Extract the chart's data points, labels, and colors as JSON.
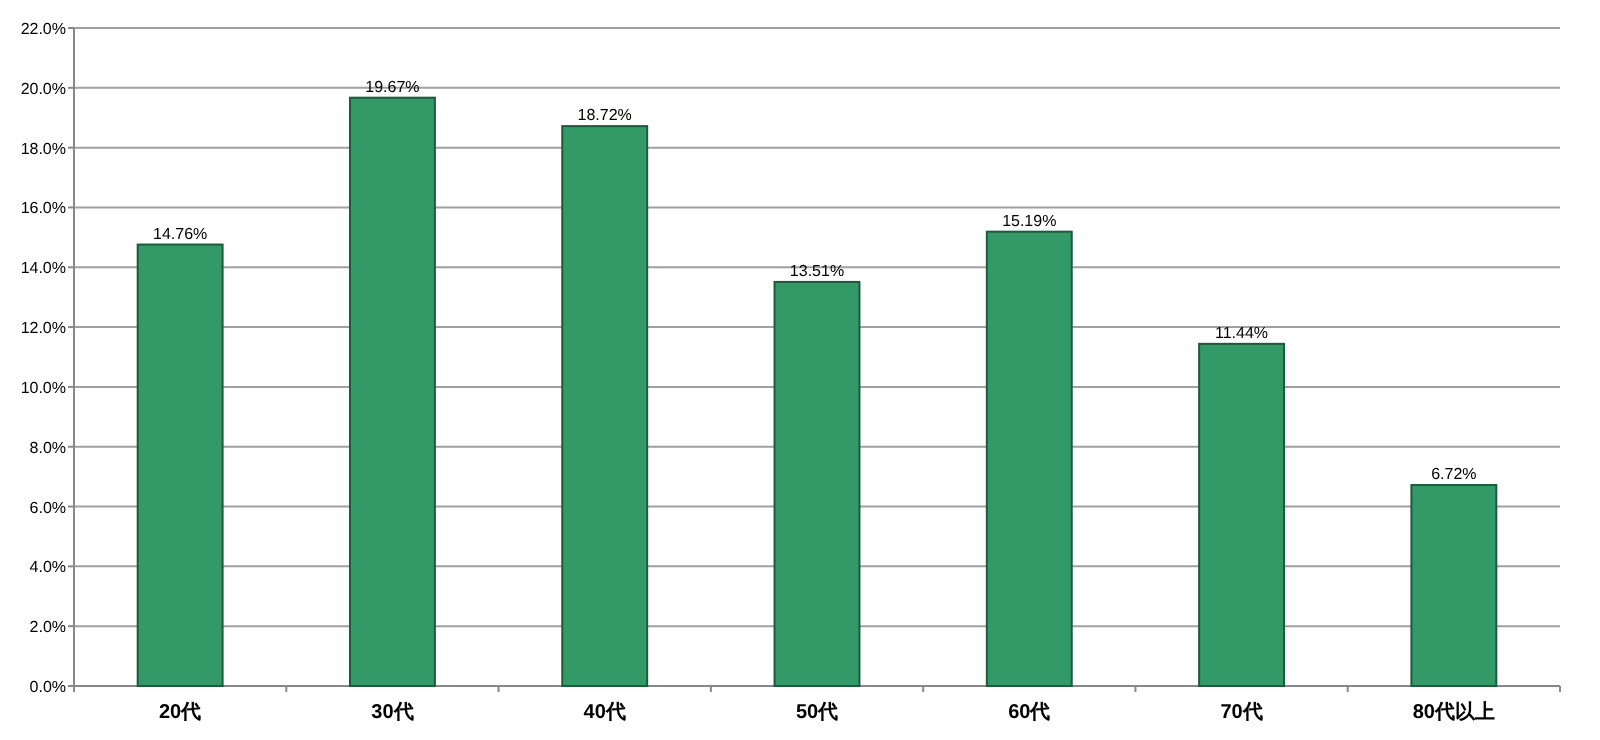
{
  "chart_data": {
    "type": "bar",
    "categories": [
      "20代",
      "30代",
      "40代",
      "50代",
      "60代",
      "70代",
      "80代以上"
    ],
    "values": [
      14.76,
      19.67,
      18.72,
      13.51,
      15.19,
      11.44,
      6.72
    ],
    "value_labels": [
      "14.76%",
      "19.67%",
      "18.72%",
      "13.51%",
      "15.19%",
      "11.44%",
      "6.72%"
    ],
    "color": "#339966",
    "ylim": [
      0,
      22
    ],
    "yticks": [
      {
        "value": 0,
        "label": "0.0%"
      },
      {
        "value": 2,
        "label": "2.0%"
      },
      {
        "value": 4,
        "label": "4.0%"
      },
      {
        "value": 6,
        "label": "6.0%"
      },
      {
        "value": 8,
        "label": "8.0%"
      },
      {
        "value": 10,
        "label": "10.0%"
      },
      {
        "value": 12,
        "label": "12.0%"
      },
      {
        "value": 14,
        "label": "14.0%"
      },
      {
        "value": 16,
        "label": "16.0%"
      },
      {
        "value": 18,
        "label": "18.0%"
      },
      {
        "value": 20,
        "label": "20.0%"
      },
      {
        "value": 22,
        "label": "22.0%"
      }
    ],
    "grid": "y"
  }
}
